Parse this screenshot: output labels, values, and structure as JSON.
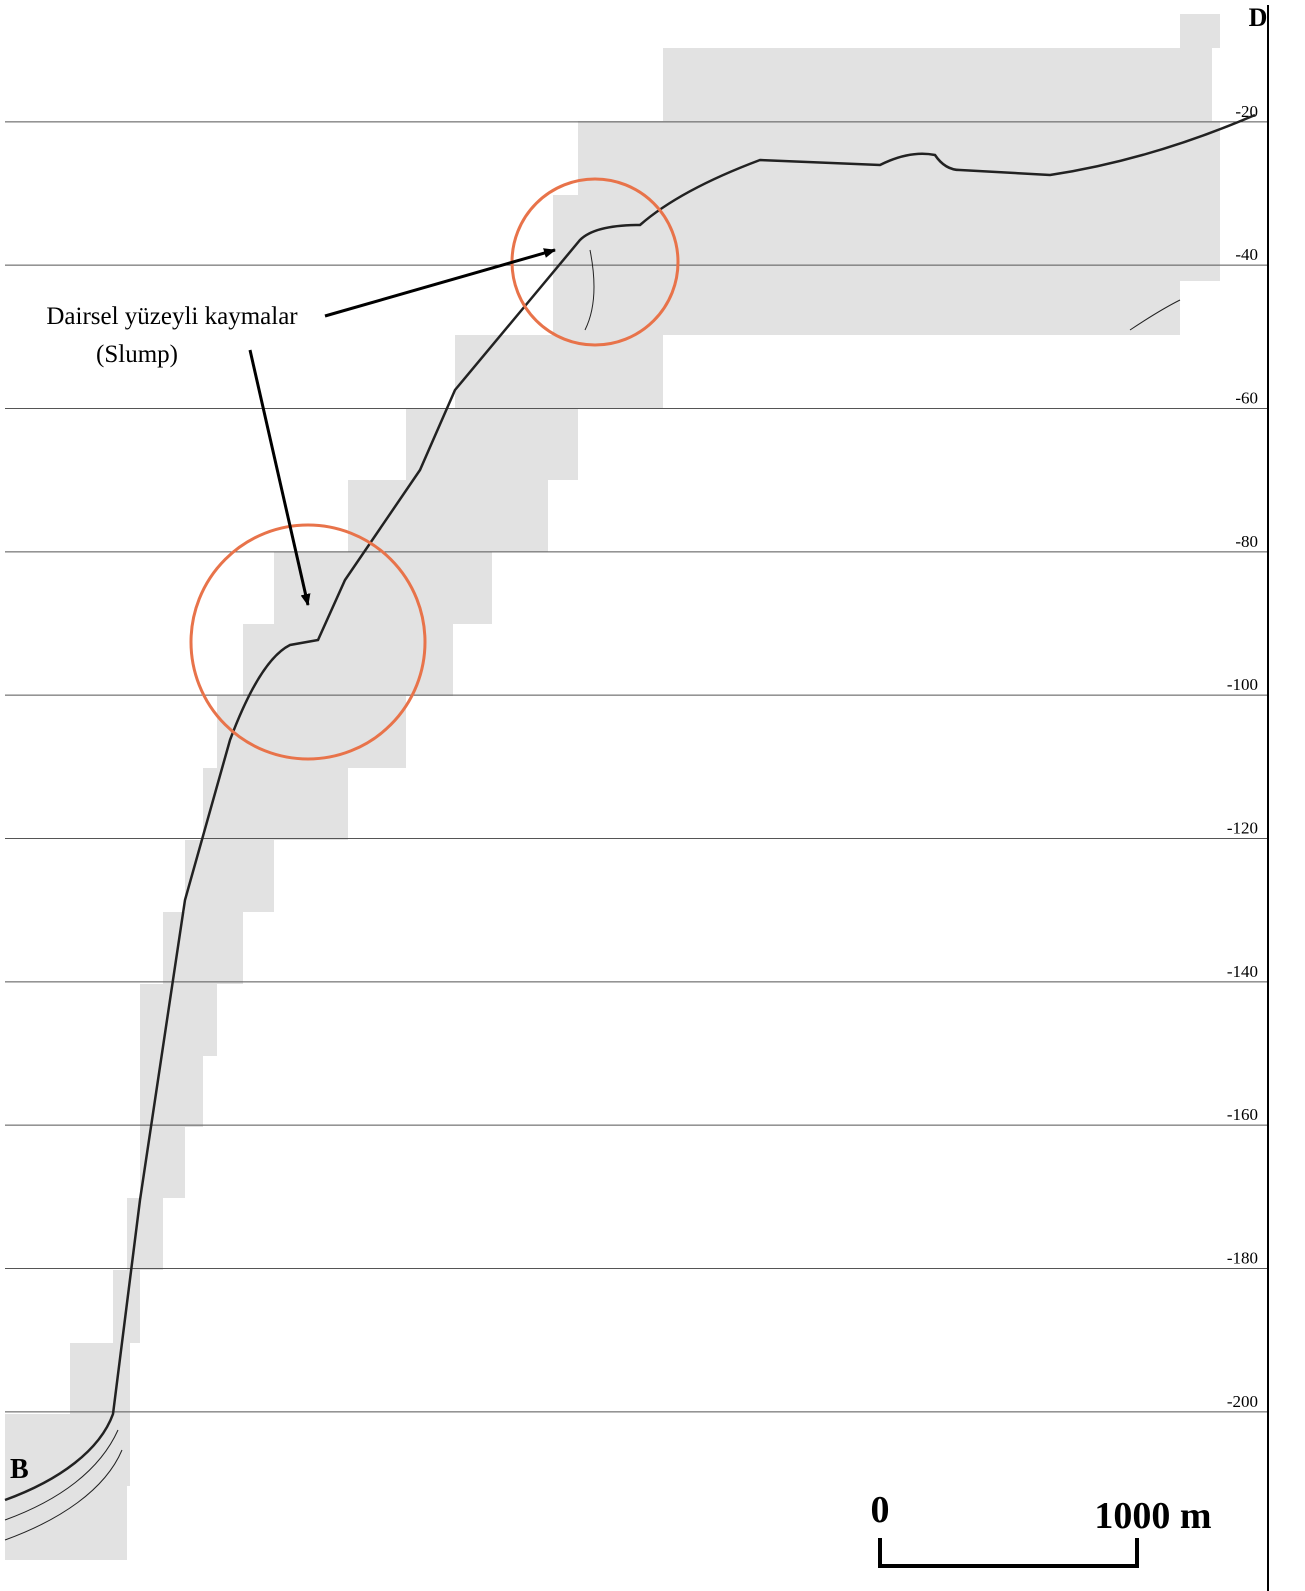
{
  "profile": {
    "start_label": "B",
    "end_label": "D",
    "annotation": {
      "line1": "Dairsel yüzeyli kaymalar",
      "line2": "(Slump)"
    },
    "depth_axis": {
      "ylim": [
        -3,
        -225
      ],
      "ticks": [
        -20,
        -40,
        -60,
        -80,
        -100,
        -120,
        -140,
        -160,
        -180,
        -200
      ]
    },
    "scale_bar": {
      "start": "0",
      "end": "1000 m"
    }
  }
}
